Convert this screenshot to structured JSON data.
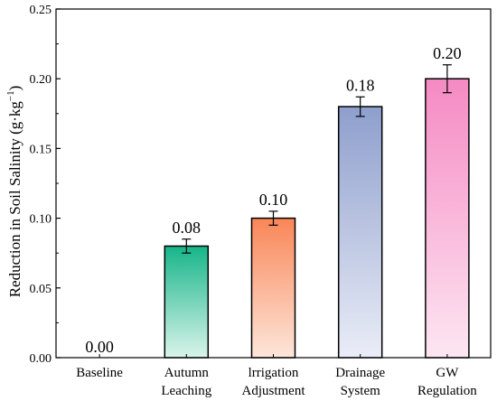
{
  "chart_data": {
    "type": "bar",
    "categories": [
      [
        "Baseline"
      ],
      [
        "Autumn",
        "Leaching"
      ],
      [
        "lrrigation",
        "Adjustment"
      ],
      [
        "Drainage",
        "System"
      ],
      [
        "GW",
        "Regulation"
      ]
    ],
    "values": [
      0.0,
      0.08,
      0.1,
      0.18,
      0.2
    ],
    "errors": [
      0.0,
      0.005,
      0.005,
      0.007,
      0.01
    ],
    "value_labels": [
      "0.00",
      "0.08",
      "0.10",
      "0.18",
      "0.20"
    ],
    "ylabel": "Reduction in Soil Salinity (g·kg",
    "ylabel_superscript": "−1",
    "ylabel_close": ")",
    "ylim": [
      0,
      0.25
    ],
    "yticks": [
      "0.00",
      "0.05",
      "0.10",
      "0.15",
      "0.20",
      "0.25"
    ],
    "colors": [
      {
        "top": "#ffffff",
        "bottom": "#ffffff"
      },
      {
        "top": "#17b589",
        "bottom": "#d9f4ea"
      },
      {
        "top": "#f98657",
        "bottom": "#fde6da"
      },
      {
        "top": "#8e9fcd",
        "bottom": "#eaedf7"
      },
      {
        "top": "#f58ac3",
        "bottom": "#fde6f2"
      }
    ],
    "grid": false,
    "legend": "none"
  }
}
